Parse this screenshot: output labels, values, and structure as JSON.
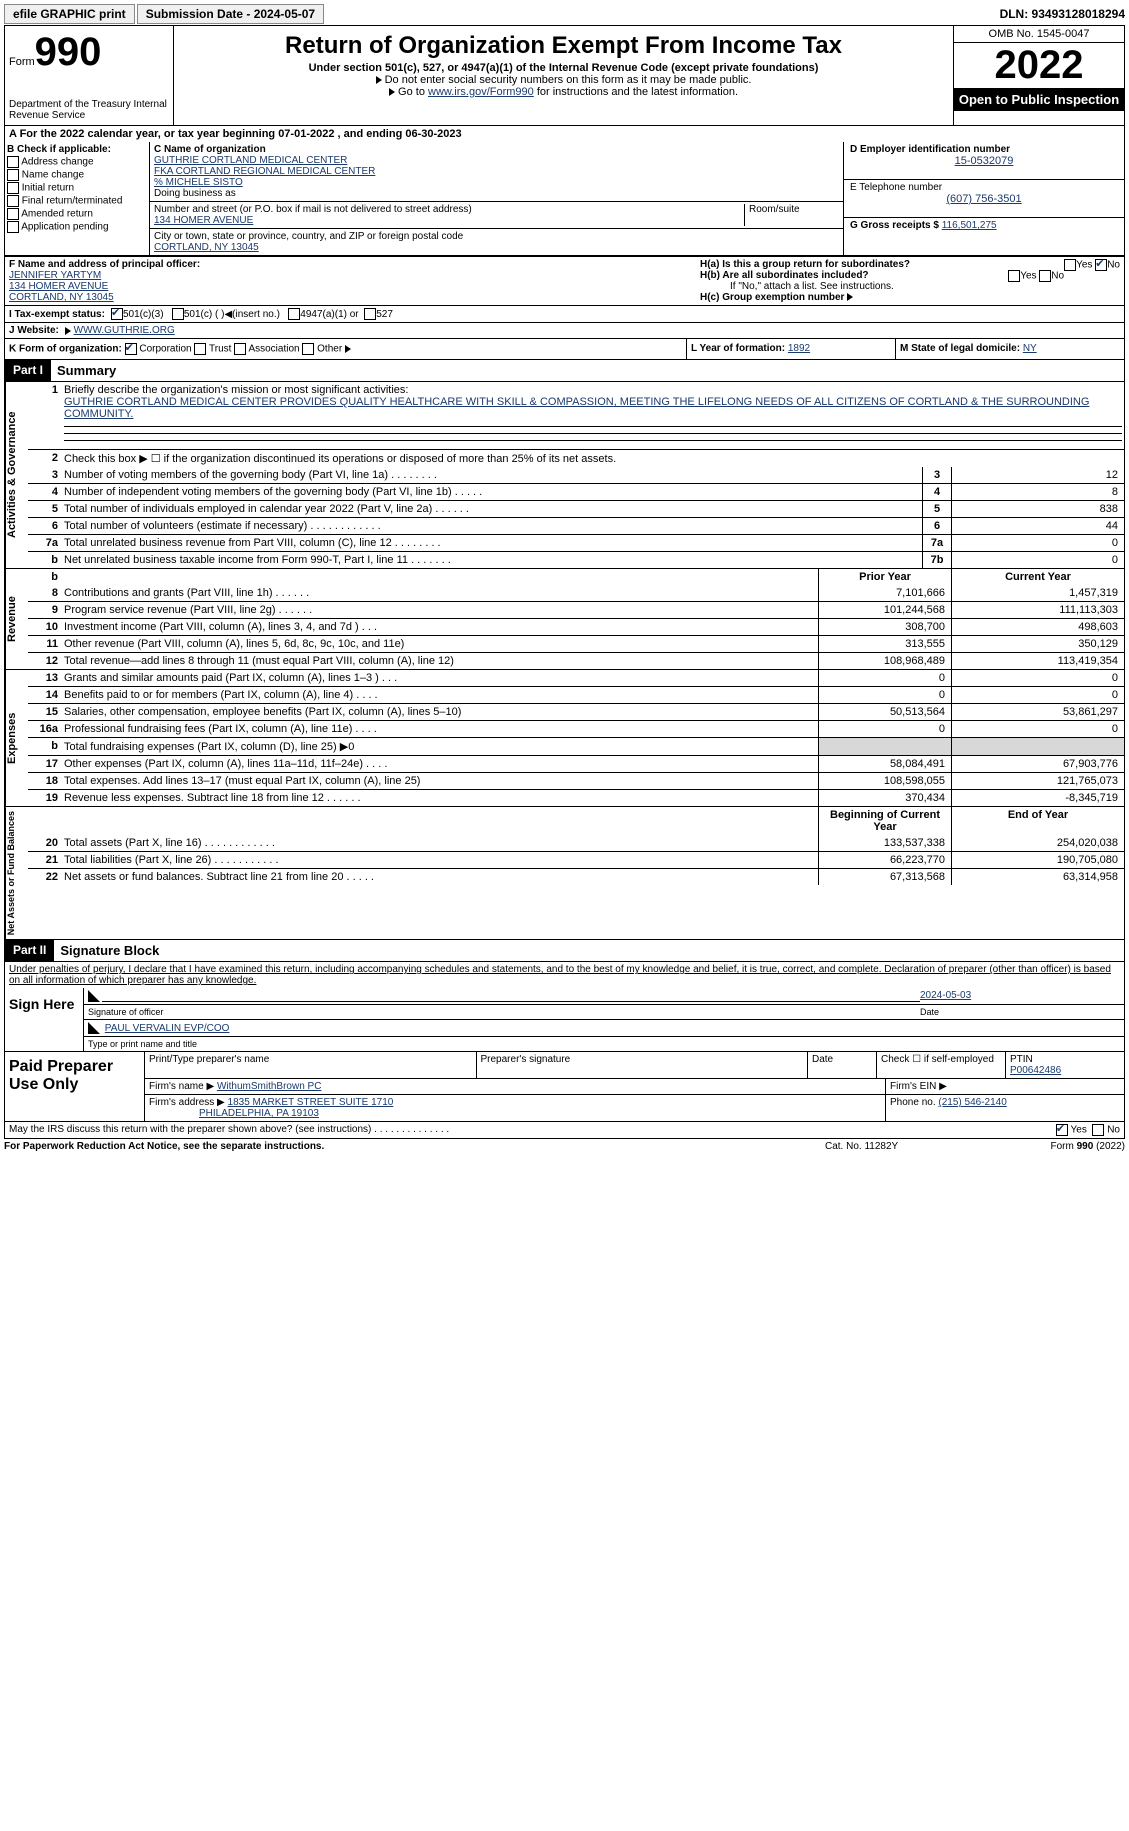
{
  "top": {
    "efile": "efile GRAPHIC print",
    "submission_label": "Submission Date - 2024-05-07",
    "dln_label": "DLN: 93493128018294"
  },
  "header": {
    "form_word": "Form",
    "form_num": "990",
    "dept": "Department of the Treasury Internal Revenue Service",
    "title": "Return of Organization Exempt From Income Tax",
    "under": "Under section 501(c), 527, or 4947(a)(1) of the Internal Revenue Code (except private foundations)",
    "note1": "Do not enter social security numbers on this form as it may be made public.",
    "note2_pre": "Go to ",
    "note2_link": "www.irs.gov/Form990",
    "note2_post": " for instructions and the latest information.",
    "omb": "OMB No. 1545-0047",
    "year": "2022",
    "open": "Open to Public Inspection"
  },
  "rowA": "A For the 2022 calendar year, or tax year beginning 07-01-2022    , and ending 06-30-2023",
  "B": {
    "label": "B Check if applicable:",
    "opts": [
      "Address change",
      "Name change",
      "Initial return",
      "Final return/terminated",
      "Amended return",
      "Application pending"
    ]
  },
  "C": {
    "label_name": "C Name of organization",
    "name1": "GUTHRIE CORTLAND MEDICAL CENTER",
    "name2": "FKA CORTLAND REGIONAL MEDICAL CENTER",
    "name3": "% MICHELE SISTO",
    "dba_label": "Doing business as",
    "street_label": "Number and street (or P.O. box if mail is not delivered to street address)",
    "room_label": "Room/suite",
    "street": "134 HOMER AVENUE",
    "city_label": "City or town, state or province, country, and ZIP or foreign postal code",
    "city": "CORTLAND, NY  13045"
  },
  "D": {
    "label": "D Employer identification number",
    "val": "15-0532079"
  },
  "E": {
    "label": "E Telephone number",
    "val": "(607) 756-3501"
  },
  "G": {
    "label": "G Gross receipts $",
    "val": "116,501,275"
  },
  "F": {
    "label": "F  Name and address of principal officer:",
    "name": "JENNIFER YARTYM",
    "addr1": "134 HOMER AVENUE",
    "addr2": "CORTLAND, NY  13045"
  },
  "H": {
    "a": "H(a)  Is this a group return for subordinates?",
    "b": "H(b)  Are all subordinates included?",
    "b_note": "If \"No,\" attach a list. See instructions.",
    "c_label": "H(c)  Group exemption number",
    "yes": "Yes",
    "no": "No"
  },
  "I": {
    "label": "I  Tax-exempt status:",
    "o1": "501(c)(3)",
    "o2": "501(c) (   )",
    "o2b": "(insert no.)",
    "o3": "4947(a)(1) or",
    "o4": "527"
  },
  "J": {
    "label": "J  Website:",
    "val": "WWW.GUTHRIE.ORG"
  },
  "K": {
    "label": "K Form of organization:",
    "o1": "Corporation",
    "o2": "Trust",
    "o3": "Association",
    "o4": "Other"
  },
  "L": {
    "label": "L Year of formation:",
    "val": "1892"
  },
  "M": {
    "label": "M State of legal domicile:",
    "val": "NY"
  },
  "part1": {
    "header": "Part I",
    "title": "Summary",
    "mission_label": "Briefly describe the organization's mission or most significant activities:",
    "mission": "GUTHRIE CORTLAND MEDICAL CENTER PROVIDES QUALITY HEALTHCARE WITH SKILL & COMPASSION, MEETING THE LIFELONG NEEDS OF ALL CITIZENS OF CORTLAND & THE SURROUNDING COMMUNITY.",
    "line2": "Check this box ▶ ☐  if the organization discontinued its operations or disposed of more than 25% of its net assets.",
    "gov_label": "Activities & Governance",
    "rev_label": "Revenue",
    "exp_label": "Expenses",
    "net_label": "Net Assets or Fund Balances",
    "prior": "Prior Year",
    "current": "Current Year",
    "beg": "Beginning of Current Year",
    "end": "End of Year",
    "rows_gov": [
      {
        "n": "3",
        "d": "Number of voting members of the governing body (Part VI, line 1a)   .    .    .    .    .    .    .    .",
        "b": "3",
        "v": "12"
      },
      {
        "n": "4",
        "d": "Number of independent voting members of the governing body (Part VI, line 1b)   .    .    .    .    .",
        "b": "4",
        "v": "8"
      },
      {
        "n": "5",
        "d": "Total number of individuals employed in calendar year 2022 (Part V, line 2a)   .    .    .    .    .    .",
        "b": "5",
        "v": "838"
      },
      {
        "n": "6",
        "d": "Total number of volunteers (estimate if necessary)    .    .    .    .    .    .    .    .    .    .    .    .",
        "b": "6",
        "v": "44"
      },
      {
        "n": "7a",
        "d": "Total unrelated business revenue from Part VIII, column (C), line 12    .    .    .    .    .    .    .    .",
        "b": "7a",
        "v": "0"
      },
      {
        "n": "b",
        "d": "Net unrelated business taxable income from Form 990-T, Part I, line 11   .    .    .    .    .    .    .",
        "b": "7b",
        "v": "0"
      }
    ],
    "rows_rev": [
      {
        "n": "8",
        "d": "Contributions and grants (Part VIII, line 1h)   .    .    .    .    .    .",
        "p": "7,101,666",
        "c": "1,457,319"
      },
      {
        "n": "9",
        "d": "Program service revenue (Part VIII, line 2g)   .    .    .    .    .    .",
        "p": "101,244,568",
        "c": "111,113,303"
      },
      {
        "n": "10",
        "d": "Investment income (Part VIII, column (A), lines 3, 4, and 7d )    .    .    .",
        "p": "308,700",
        "c": "498,603"
      },
      {
        "n": "11",
        "d": "Other revenue (Part VIII, column (A), lines 5, 6d, 8c, 9c, 10c, and 11e)",
        "p": "313,555",
        "c": "350,129"
      },
      {
        "n": "12",
        "d": "Total revenue—add lines 8 through 11 (must equal Part VIII, column (A), line 12)",
        "p": "108,968,489",
        "c": "113,419,354"
      }
    ],
    "rows_exp": [
      {
        "n": "13",
        "d": "Grants and similar amounts paid (Part IX, column (A), lines 1–3 )   .    .    .",
        "p": "0",
        "c": "0"
      },
      {
        "n": "14",
        "d": "Benefits paid to or for members (Part IX, column (A), line 4)    .    .    .    .",
        "p": "0",
        "c": "0"
      },
      {
        "n": "15",
        "d": "Salaries, other compensation, employee benefits (Part IX, column (A), lines 5–10)",
        "p": "50,513,564",
        "c": "53,861,297"
      },
      {
        "n": "16a",
        "d": "Professional fundraising fees (Part IX, column (A), line 11e)   .    .    .    .",
        "p": "0",
        "c": "0"
      },
      {
        "n": "b",
        "d": "Total fundraising expenses (Part IX, column (D), line 25) ▶0",
        "p": "",
        "c": "",
        "shade": true
      },
      {
        "n": "17",
        "d": "Other expenses (Part IX, column (A), lines 11a–11d, 11f–24e)    .    .    .    .",
        "p": "58,084,491",
        "c": "67,903,776"
      },
      {
        "n": "18",
        "d": "Total expenses. Add lines 13–17 (must equal Part IX, column (A), line 25)",
        "p": "108,598,055",
        "c": "121,765,073"
      },
      {
        "n": "19",
        "d": "Revenue less expenses. Subtract line 18 from line 12   .    .    .    .    .    .",
        "p": "370,434",
        "c": "-8,345,719"
      }
    ],
    "rows_net": [
      {
        "n": "20",
        "d": "Total assets (Part X, line 16)   .    .    .    .    .    .    .    .    .    .    .    .",
        "p": "133,537,338",
        "c": "254,020,038"
      },
      {
        "n": "21",
        "d": "Total liabilities (Part X, line 26)   .    .    .    .    .    .    .    .    .    .    .",
        "p": "66,223,770",
        "c": "190,705,080"
      },
      {
        "n": "22",
        "d": "Net assets or fund balances. Subtract line 21 from line 20   .    .    .    .    .",
        "p": "67,313,568",
        "c": "63,314,958"
      }
    ]
  },
  "part2": {
    "header": "Part II",
    "title": "Signature Block",
    "penalties": "Under penalties of perjury, I declare that I have examined this return, including accompanying schedules and statements, and to the best of my knowledge and belief, it is true, correct, and complete. Declaration of preparer (other than officer) is based on all information of which preparer has any knowledge.",
    "sign_here": "Sign Here",
    "sig_of_officer": "Signature of officer",
    "date_val": "2024-05-03",
    "date_label": "Date",
    "officer_name": "PAUL VERVALIN  EVP/COO",
    "type_name": "Type or print name and title",
    "paid": "Paid Preparer Use Only",
    "print_name": "Print/Type preparer's name",
    "prep_sig": "Preparer's signature",
    "check_self": "Check ☐ if self-employed",
    "ptin_label": "PTIN",
    "ptin": "P00642486",
    "firm_name_label": "Firm's name    ▶",
    "firm_name": "WithumSmithBrown PC",
    "firm_ein": "Firm's EIN ▶",
    "firm_addr_label": "Firm's address ▶",
    "firm_addr1": "1835 MARKET STREET SUITE 1710",
    "firm_addr2": "PHILADELPHIA, PA  19103",
    "phone_label": "Phone no.",
    "phone": "(215) 546-2140",
    "discuss": "May the IRS discuss this return with the preparer shown above? (see instructions)    .    .    .    .    .    .    .    .    .    .    .    .    .    .",
    "yes": "Yes",
    "no": "No"
  },
  "footer": {
    "pra": "For Paperwork Reduction Act Notice, see the separate instructions.",
    "cat": "Cat. No. 11282Y",
    "form": "Form 990 (2022)"
  }
}
